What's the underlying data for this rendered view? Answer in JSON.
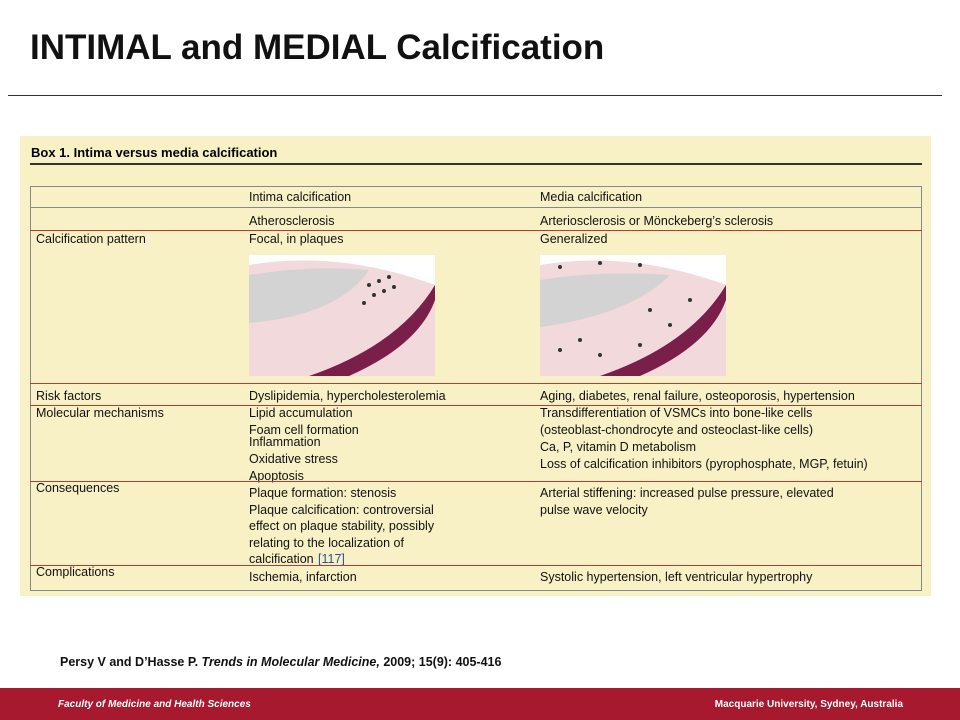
{
  "header": {
    "title": "INTIMAL and MEDIAL Calcification"
  },
  "box": {
    "title": "Box 1. Intima versus media calcification",
    "table": {
      "columns": [
        "Intima calcification",
        "Media calcification"
      ],
      "rows": [
        {
          "intima": [
            "Atherosclerosis"
          ],
          "media": [
            "Arteriosclerosis or Mönckeberg’s sclerosis"
          ]
        },
        {
          "label": "Calcification pattern",
          "intima": [
            "Focal, in plaques"
          ],
          "media": [
            "Generalized"
          ]
        },
        {
          "label": "Risk factors",
          "intima": [
            "Dyslipidemia, hypercholesterolemia"
          ],
          "media": [
            "Aging, diabetes, renal failure, osteoporosis, hypertension"
          ]
        },
        {
          "label": "Molecular mechanisms",
          "intima": [
            "Lipid accumulation",
            "Foam cell formation",
            "Inflammation",
            "Oxidative stress",
            "Apoptosis"
          ],
          "media": [
            "Transdifferentiation of VSMCs into bone-like cells",
            "(osteoblast-chondrocyte and osteoclast-like cells)",
            "Ca, P, vitamin D metabolism",
            "Loss of calcification inhibitors (pyrophosphate, MGP, fetuin)"
          ]
        },
        {
          "label": "Consequences",
          "intima": [
            "Plaque formation: stenosis",
            "Plaque calcification: controversial",
            "effect on plaque stability, possibly",
            "relating to the localization of",
            "calcification"
          ],
          "intima_ref": "[117]",
          "media": [
            "Arterial stiffening: increased pulse pressure, elevated",
            "pulse wave velocity"
          ]
        },
        {
          "label": "Complications",
          "intima": [
            "Ischemia, infarction"
          ],
          "media": [
            "Systolic hypertension, left ventricular hypertrophy"
          ]
        }
      ]
    }
  },
  "citation": {
    "authors": "Persy V and D’Hasse P.",
    "journal": "Trends in Molecular Medicine,",
    "details": "2009; 15(9): 405-416"
  },
  "footer": {
    "left": "Faculty of Medicine and Health Sciences",
    "right": "Macquarie University, Sydney, Australia"
  }
}
